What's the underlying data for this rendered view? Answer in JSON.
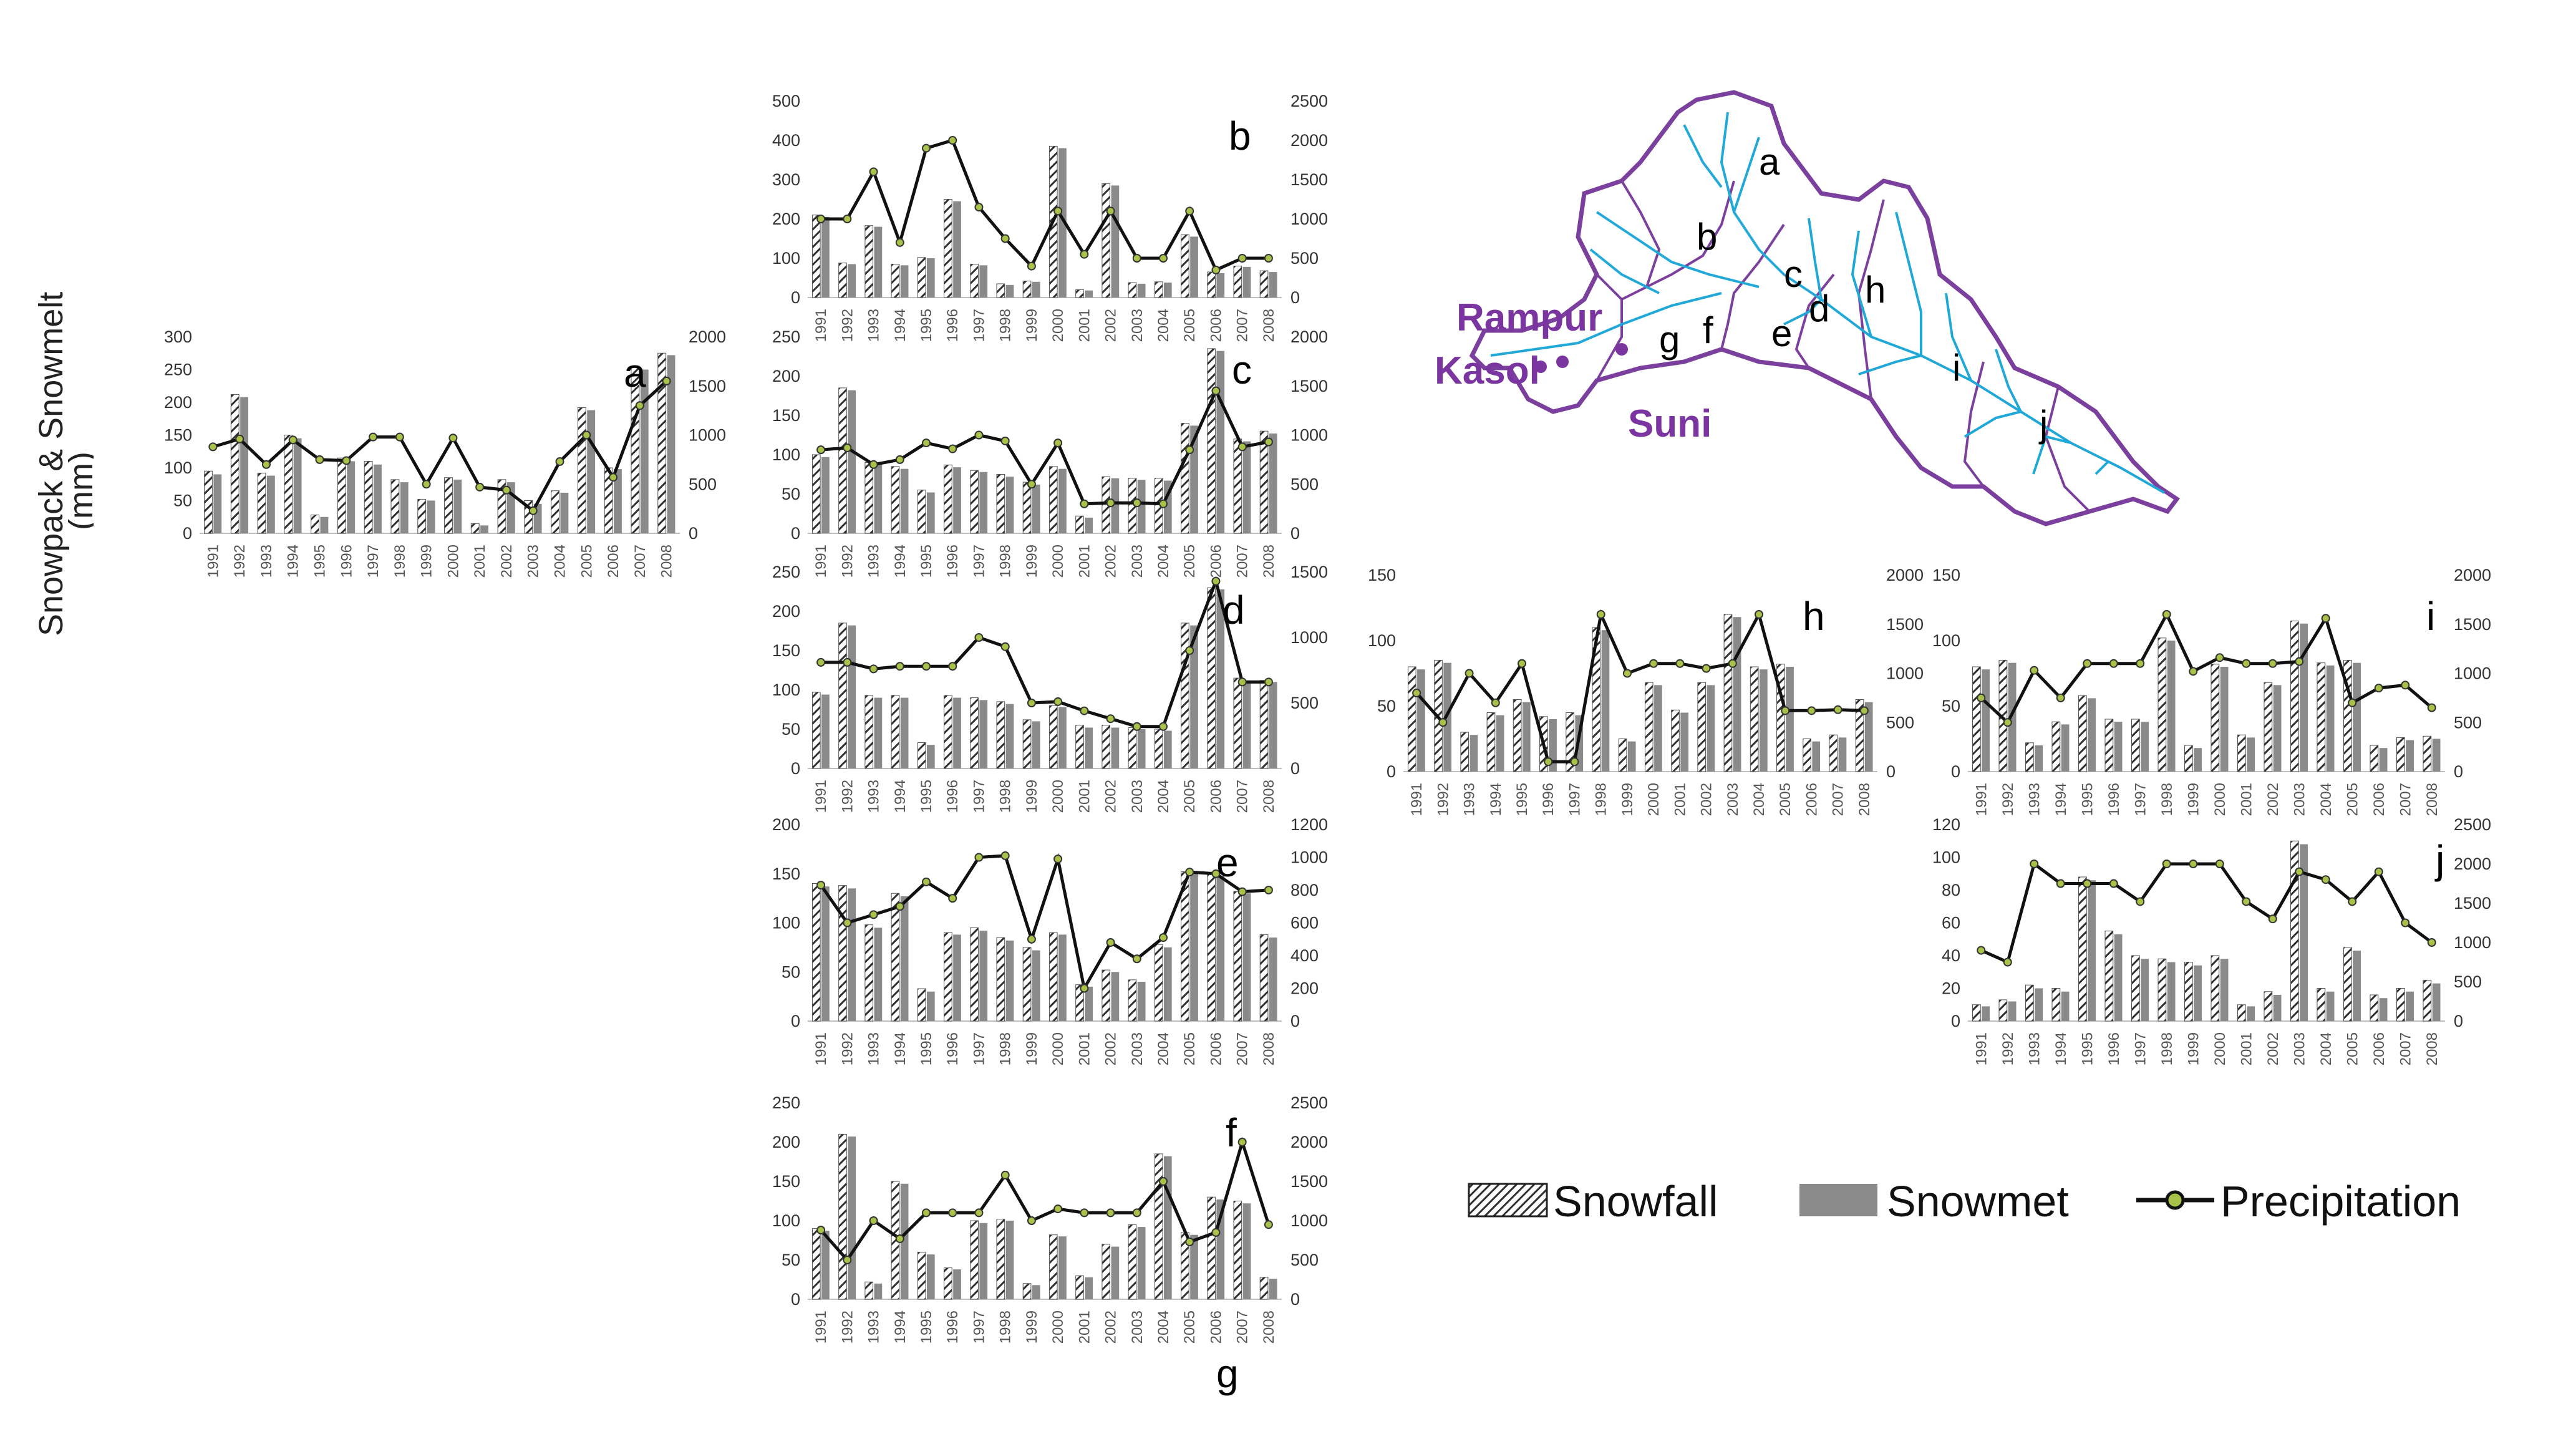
{
  "figure": {
    "y_axis_label_line1": "Snowpack & Snowmelt",
    "y_axis_label_line2": "(mm)",
    "bottom_label": "g"
  },
  "legend": {
    "snowfall": "Snowfall",
    "snowmelt": "Snowmet",
    "precipitation": "Precipitation"
  },
  "map": {
    "sites": [
      "Rampur",
      "Kasol",
      "Suni"
    ],
    "subbasins": [
      "a",
      "b",
      "c",
      "d",
      "e",
      "f",
      "g",
      "h",
      "i",
      "j"
    ],
    "outline_color": "#7b3f9e",
    "river_color": "#1fa8d8",
    "site_color": "#7a35a0"
  },
  "colors": {
    "snowfall_bar": "#3a3a3a",
    "snowmelt_bar": "#8a8a8a",
    "precip_line": "#111111",
    "precip_marker": "#a9c24a"
  },
  "chart_data": [
    {
      "type": "bar",
      "panel": "a",
      "categories": [
        "1991",
        "1992",
        "1993",
        "1994",
        "1995",
        "1996",
        "1997",
        "1998",
        "1999",
        "2000",
        "2001",
        "2002",
        "2003",
        "2004",
        "2005",
        "2006",
        "2007",
        "2008"
      ],
      "ylim": [
        0,
        300
      ],
      "y_ticks": [
        0,
        50,
        100,
        150,
        200,
        250,
        300
      ],
      "y2lim": [
        0,
        2000
      ],
      "y2_ticks": [
        0,
        500,
        1000,
        1500,
        2000
      ],
      "series": [
        {
          "name": "Snowfall",
          "values": [
            95,
            212,
            92,
            150,
            28,
            115,
            110,
            82,
            52,
            85,
            15,
            82,
            50,
            65,
            192,
            100,
            255,
            275
          ]
        },
        {
          "name": "Snowmet",
          "values": [
            90,
            208,
            88,
            145,
            25,
            110,
            105,
            78,
            50,
            82,
            12,
            78,
            45,
            62,
            188,
            98,
            250,
            272
          ]
        },
        {
          "name": "Precipitation",
          "axis": "right",
          "values": [
            880,
            960,
            700,
            950,
            750,
            740,
            980,
            980,
            500,
            970,
            470,
            440,
            230,
            730,
            1000,
            570,
            1300,
            1550
          ]
        }
      ]
    },
    {
      "type": "bar",
      "panel": "b",
      "categories": [
        "1991",
        "1992",
        "1993",
        "1994",
        "1995",
        "1996",
        "1997",
        "1998",
        "1999",
        "2000",
        "2001",
        "2002",
        "2003",
        "2004",
        "2005",
        "2006",
        "2007",
        "2008"
      ],
      "ylim": [
        0,
        500
      ],
      "y_ticks": [
        0,
        100,
        200,
        300,
        400,
        500
      ],
      "y2lim": [
        0,
        2500
      ],
      "y2_ticks": [
        0,
        500,
        1000,
        1500,
        2000,
        2500
      ],
      "series": [
        {
          "name": "Snowfall",
          "values": [
            210,
            88,
            183,
            85,
            102,
            250,
            85,
            35,
            42,
            385,
            20,
            290,
            38,
            40,
            160,
            65,
            80,
            68
          ]
        },
        {
          "name": "Snowmet",
          "values": [
            205,
            85,
            180,
            82,
            100,
            245,
            82,
            32,
            40,
            380,
            18,
            285,
            35,
            38,
            155,
            62,
            78,
            65
          ]
        },
        {
          "name": "Precipitation",
          "axis": "right",
          "values": [
            1000,
            1000,
            1600,
            700,
            1900,
            2000,
            1150,
            750,
            400,
            1100,
            550,
            1100,
            500,
            500,
            1100,
            350,
            500,
            500
          ]
        }
      ]
    },
    {
      "type": "bar",
      "panel": "c",
      "categories": [
        "1991",
        "1992",
        "1993",
        "1994",
        "1995",
        "1996",
        "1997",
        "1998",
        "1999",
        "2000",
        "2001",
        "2002",
        "2003",
        "2004",
        "2005",
        "2006",
        "2007",
        "2008"
      ],
      "ylim": [
        0,
        250
      ],
      "y_ticks": [
        0,
        50,
        100,
        150,
        200,
        250
      ],
      "y2lim": [
        0,
        2000
      ],
      "y2_ticks": [
        0,
        500,
        1000,
        1500,
        2000
      ],
      "series": [
        {
          "name": "Snowfall",
          "values": [
            100,
            185,
            90,
            85,
            55,
            87,
            80,
            75,
            65,
            85,
            22,
            72,
            70,
            70,
            140,
            235,
            120,
            130
          ]
        },
        {
          "name": "Snowmet",
          "values": [
            97,
            182,
            87,
            82,
            52,
            84,
            78,
            72,
            62,
            82,
            20,
            70,
            68,
            67,
            137,
            232,
            117,
            127
          ]
        },
        {
          "name": "Precipitation",
          "axis": "right",
          "values": [
            850,
            870,
            700,
            750,
            920,
            860,
            1000,
            940,
            500,
            920,
            300,
            310,
            310,
            300,
            850,
            1450,
            880,
            930
          ]
        }
      ]
    },
    {
      "type": "bar",
      "panel": "d",
      "categories": [
        "1991",
        "1992",
        "1993",
        "1994",
        "1995",
        "1996",
        "1997",
        "1998",
        "1999",
        "2000",
        "2001",
        "2002",
        "2003",
        "2004",
        "2005",
        "2006",
        "2007",
        "2008"
      ],
      "ylim": [
        0,
        250
      ],
      "y_ticks": [
        0,
        50,
        100,
        150,
        200,
        250
      ],
      "y2lim": [
        0,
        1500
      ],
      "y2_ticks": [
        0,
        500,
        1000,
        1500
      ],
      "series": [
        {
          "name": "Snowfall",
          "values": [
            97,
            185,
            93,
            93,
            33,
            93,
            90,
            85,
            62,
            80,
            55,
            55,
            52,
            50,
            185,
            230,
            115,
            112
          ]
        },
        {
          "name": "Snowmet",
          "values": [
            94,
            182,
            90,
            90,
            30,
            90,
            87,
            82,
            60,
            78,
            52,
            52,
            50,
            48,
            182,
            228,
            112,
            110
          ]
        },
        {
          "name": "Precipitation",
          "axis": "right",
          "values": [
            810,
            810,
            760,
            780,
            780,
            780,
            1000,
            930,
            500,
            510,
            440,
            380,
            320,
            320,
            900,
            1430,
            660,
            660
          ]
        }
      ]
    },
    {
      "type": "bar",
      "panel": "e",
      "categories": [
        "1991",
        "1992",
        "1993",
        "1994",
        "1995",
        "1996",
        "1997",
        "1998",
        "1999",
        "2000",
        "2001",
        "2002",
        "2003",
        "2004",
        "2005",
        "2006",
        "2007",
        "2008"
      ],
      "ylim": [
        0,
        200
      ],
      "y_ticks": [
        0,
        50,
        100,
        150,
        200
      ],
      "y2lim": [
        0,
        1200
      ],
      "y2_ticks": [
        0,
        200,
        400,
        600,
        800,
        1000,
        1200
      ],
      "series": [
        {
          "name": "Snowfall",
          "values": [
            140,
            138,
            98,
            130,
            33,
            90,
            95,
            85,
            75,
            90,
            37,
            52,
            42,
            78,
            152,
            150,
            132,
            88
          ]
        },
        {
          "name": "Snowmet",
          "values": [
            137,
            135,
            95,
            127,
            30,
            88,
            92,
            82,
            72,
            88,
            35,
            50,
            40,
            75,
            150,
            148,
            130,
            85
          ]
        },
        {
          "name": "Precipitation",
          "axis": "right",
          "values": [
            830,
            600,
            650,
            700,
            850,
            750,
            1000,
            1010,
            500,
            990,
            200,
            480,
            380,
            510,
            910,
            900,
            790,
            800
          ]
        }
      ]
    },
    {
      "type": "bar",
      "panel": "f",
      "categories": [
        "1991",
        "1992",
        "1993",
        "1994",
        "1995",
        "1996",
        "1997",
        "1998",
        "1999",
        "2000",
        "2001",
        "2002",
        "2003",
        "2004",
        "2005",
        "2006",
        "2007",
        "2008"
      ],
      "ylim": [
        0,
        250
      ],
      "y_ticks": [
        0,
        50,
        100,
        150,
        200,
        250
      ],
      "y2lim": [
        0,
        2500
      ],
      "y2_ticks": [
        0,
        500,
        1000,
        1500,
        2000,
        2500
      ],
      "series": [
        {
          "name": "Snowfall",
          "values": [
            90,
            210,
            22,
            150,
            60,
            40,
            100,
            102,
            20,
            82,
            30,
            70,
            95,
            185,
            85,
            130,
            125,
            28
          ]
        },
        {
          "name": "Snowmet",
          "values": [
            87,
            207,
            20,
            147,
            57,
            38,
            97,
            100,
            18,
            80,
            28,
            67,
            92,
            182,
            82,
            127,
            122,
            26
          ]
        },
        {
          "name": "Precipitation",
          "axis": "right",
          "values": [
            880,
            500,
            1000,
            770,
            1100,
            1100,
            1100,
            1580,
            1000,
            1150,
            1100,
            1100,
            1100,
            1500,
            730,
            850,
            2000,
            950
          ]
        }
      ]
    },
    {
      "type": "bar",
      "panel": "h",
      "categories": [
        "1991",
        "1992",
        "1993",
        "1994",
        "1995",
        "1996",
        "1997",
        "1998",
        "1999",
        "2000",
        "2001",
        "2002",
        "2003",
        "2004",
        "2005",
        "2006",
        "2007",
        "2008"
      ],
      "ylim": [
        0,
        150
      ],
      "y_ticks": [
        0,
        50,
        100,
        150
      ],
      "y2lim": [
        0,
        2000
      ],
      "y2_ticks": [
        0,
        500,
        1000,
        1500,
        2000
      ],
      "series": [
        {
          "name": "Snowfall",
          "values": [
            80,
            85,
            30,
            45,
            55,
            42,
            45,
            110,
            25,
            68,
            47,
            68,
            120,
            80,
            82,
            25,
            28,
            55
          ]
        },
        {
          "name": "Snowmet",
          "values": [
            78,
            83,
            28,
            43,
            53,
            40,
            43,
            108,
            23,
            66,
            45,
            66,
            118,
            78,
            80,
            23,
            26,
            53
          ]
        },
        {
          "name": "Precipitation",
          "axis": "right",
          "values": [
            800,
            500,
            1000,
            700,
            1100,
            100,
            100,
            1600,
            1000,
            1100,
            1100,
            1050,
            1100,
            1600,
            620,
            620,
            630,
            620
          ]
        }
      ]
    },
    {
      "type": "bar",
      "panel": "i",
      "categories": [
        "1991",
        "1992",
        "1993",
        "1994",
        "1995",
        "1996",
        "1997",
        "1998",
        "1999",
        "2000",
        "2001",
        "2002",
        "2003",
        "2004",
        "2005",
        "2006",
        "2007",
        "2008"
      ],
      "ylim": [
        0,
        150
      ],
      "y_ticks": [
        0,
        50,
        100,
        150
      ],
      "y2lim": [
        0,
        2000
      ],
      "y2_ticks": [
        0,
        500,
        1000,
        1500,
        2000
      ],
      "series": [
        {
          "name": "Snowfall",
          "values": [
            80,
            85,
            22,
            38,
            58,
            40,
            40,
            102,
            20,
            82,
            28,
            68,
            115,
            83,
            85,
            20,
            26,
            27
          ]
        },
        {
          "name": "Snowmet",
          "values": [
            78,
            83,
            20,
            36,
            56,
            38,
            38,
            100,
            18,
            80,
            26,
            66,
            113,
            81,
            83,
            18,
            24,
            25
          ]
        },
        {
          "name": "Precipitation",
          "axis": "right",
          "values": [
            750,
            500,
            1030,
            750,
            1100,
            1100,
            1100,
            1600,
            1020,
            1160,
            1100,
            1100,
            1120,
            1560,
            700,
            850,
            880,
            650
          ]
        }
      ]
    },
    {
      "type": "bar",
      "panel": "j",
      "categories": [
        "1991",
        "1992",
        "1993",
        "1994",
        "1995",
        "1996",
        "1997",
        "1998",
        "1999",
        "2000",
        "2001",
        "2002",
        "2003",
        "2004",
        "2005",
        "2006",
        "2007",
        "2008"
      ],
      "ylim": [
        0,
        120
      ],
      "y_ticks": [
        0,
        20,
        40,
        60,
        80,
        100,
        120
      ],
      "y2lim": [
        0,
        2500
      ],
      "y2_ticks": [
        0,
        500,
        1000,
        1500,
        2000,
        2500
      ],
      "series": [
        {
          "name": "Snowfall",
          "values": [
            10,
            13,
            22,
            20,
            88,
            55,
            40,
            38,
            36,
            40,
            10,
            18,
            110,
            20,
            45,
            16,
            20,
            25
          ]
        },
        {
          "name": "Snowmet",
          "values": [
            9,
            12,
            20,
            18,
            86,
            53,
            38,
            36,
            34,
            38,
            9,
            16,
            108,
            18,
            43,
            14,
            18,
            23
          ]
        },
        {
          "name": "Precipitation",
          "axis": "right",
          "values": [
            900,
            750,
            2000,
            1750,
            1750,
            1750,
            1520,
            2000,
            2000,
            2000,
            1520,
            1300,
            1900,
            1800,
            1520,
            1900,
            1250,
            1000
          ]
        }
      ]
    }
  ]
}
